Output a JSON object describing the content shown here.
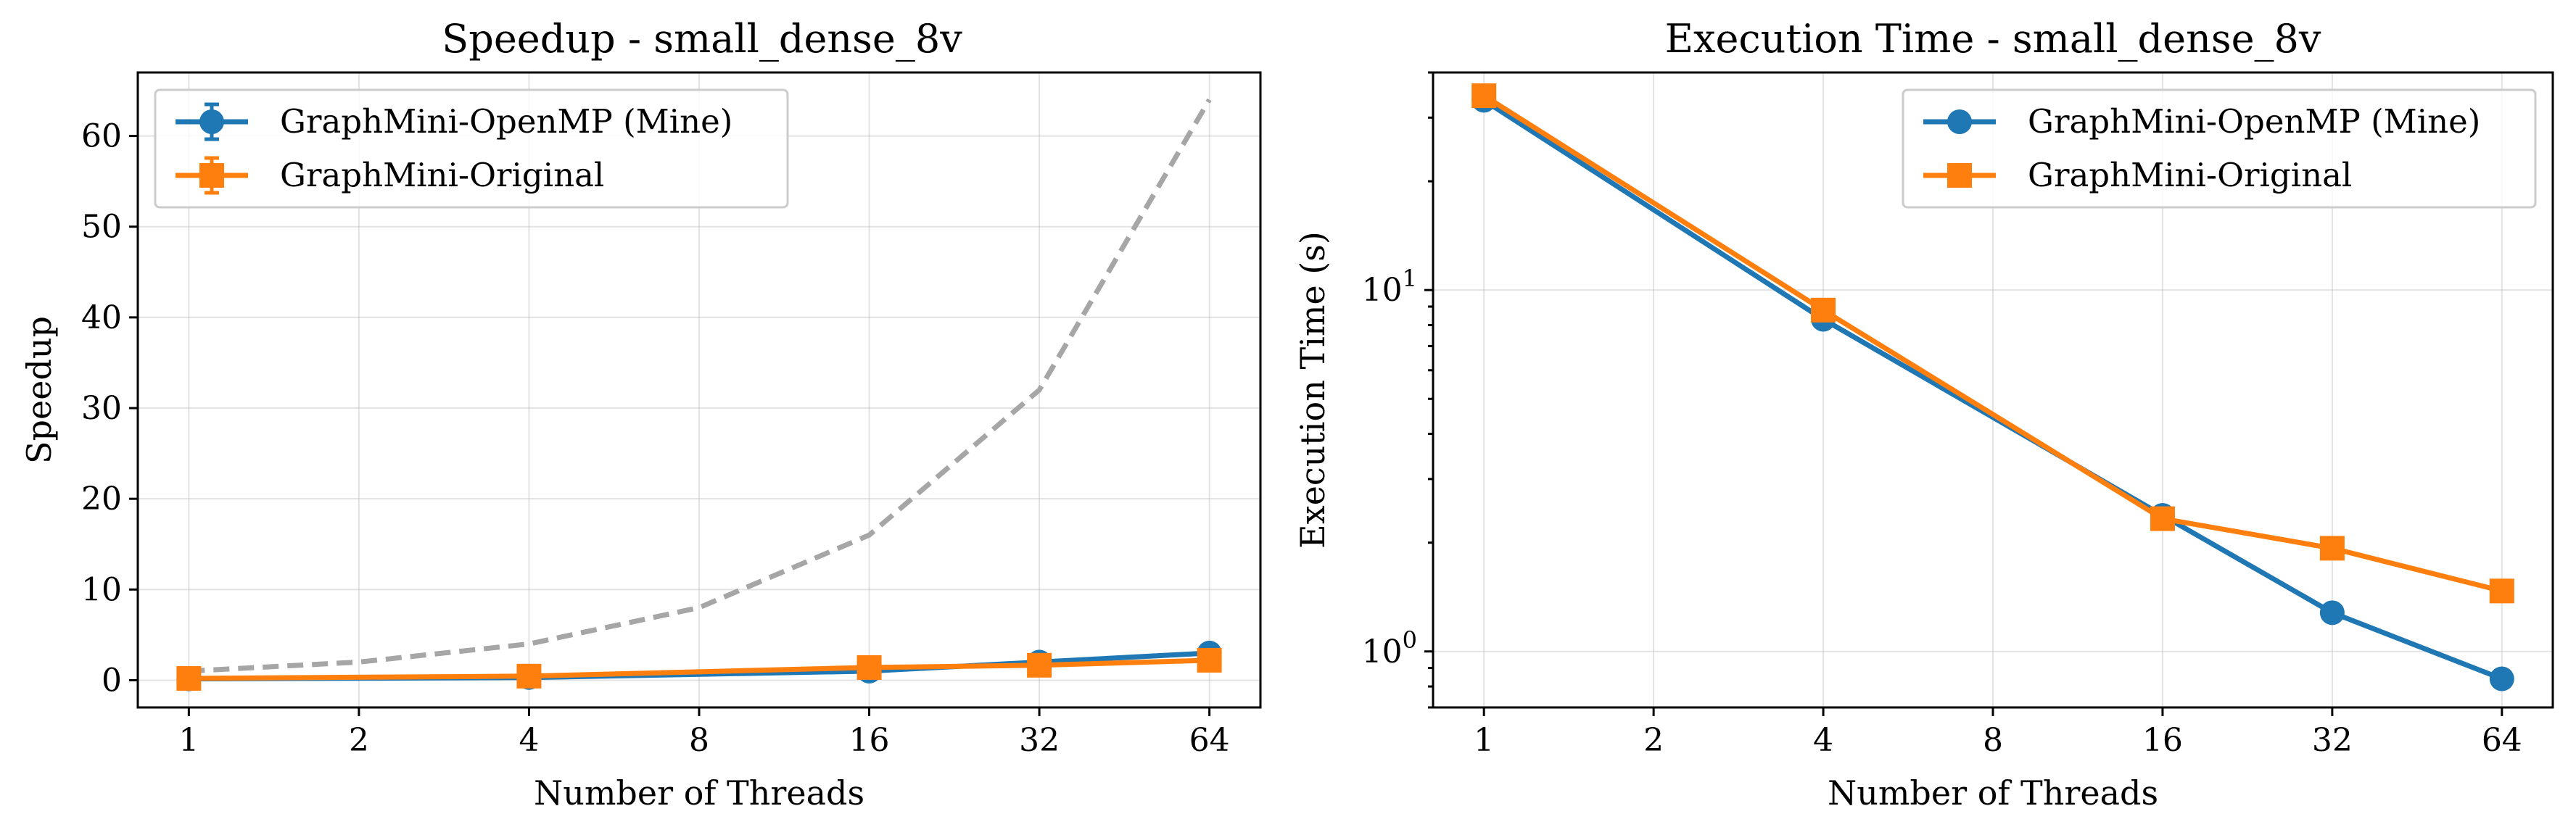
{
  "chart_data": [
    {
      "type": "line",
      "title": "Speedup - small_dense_8v",
      "xlabel": "Number of Threads",
      "ylabel": "Speedup",
      "x": [
        1,
        2,
        4,
        8,
        16,
        32,
        64
      ],
      "x_scale": "log2",
      "y_scale": "linear",
      "ylim": [
        -3,
        67
      ],
      "yticks": [
        0,
        10,
        20,
        30,
        40,
        50,
        60
      ],
      "grid": true,
      "legend_placement": "top-left",
      "series": [
        {
          "name": "",
          "style": "dashed",
          "color": "#a6a6a6",
          "x": [
            1,
            2,
            4,
            8,
            16,
            32,
            64
          ],
          "values": [
            1,
            2,
            4,
            8,
            16,
            32,
            64
          ]
        },
        {
          "name": "GraphMini-OpenMP (Mine)",
          "color": "#1f77b4",
          "marker": "circle",
          "errorbars": true,
          "x": [
            1,
            4,
            16,
            32,
            64
          ],
          "values": [
            0.15,
            0.3,
            1.0,
            2.0,
            3.0
          ]
        },
        {
          "name": "GraphMini-Original",
          "color": "#ff7f0e",
          "marker": "square",
          "errorbars": true,
          "x": [
            1,
            4,
            16,
            32,
            64
          ],
          "values": [
            0.2,
            0.45,
            1.4,
            1.65,
            2.2
          ]
        }
      ]
    },
    {
      "type": "line",
      "title": "Execution Time - small_dense_8v",
      "xlabel": "Number of Threads",
      "ylabel": "Execution Time (s)",
      "x": [
        1,
        2,
        4,
        8,
        16,
        32,
        64
      ],
      "x_scale": "log2",
      "y_scale": "log10",
      "ylim": [
        0.7,
        40
      ],
      "yticks": [
        1,
        10
      ],
      "ytick_labels": [
        {
          "base": "10",
          "exp": "0"
        },
        {
          "base": "10",
          "exp": "1"
        }
      ],
      "grid": true,
      "legend_placement": "top-right",
      "series": [
        {
          "name": "GraphMini-OpenMP (Mine)",
          "color": "#1f77b4",
          "marker": "circle",
          "x": [
            1,
            4,
            16,
            32,
            64
          ],
          "values": [
            33.5,
            8.3,
            2.38,
            1.28,
            0.84
          ]
        },
        {
          "name": "GraphMini-Original",
          "color": "#ff7f0e",
          "marker": "square",
          "x": [
            1,
            4,
            16,
            32,
            64
          ],
          "values": [
            34.5,
            8.8,
            2.33,
            1.93,
            1.47
          ]
        }
      ]
    }
  ]
}
